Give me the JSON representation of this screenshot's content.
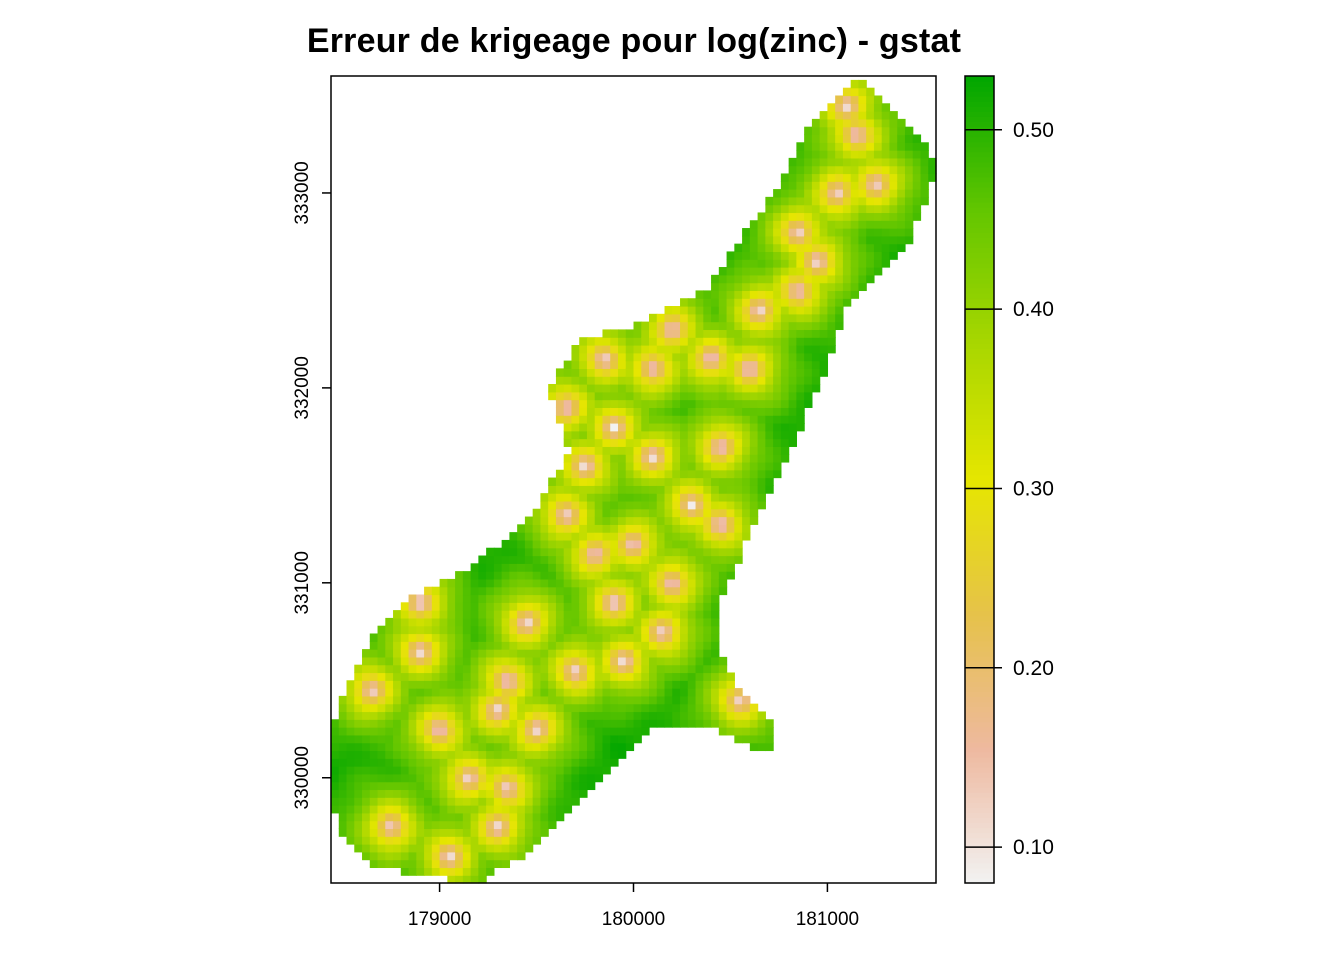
{
  "chart_data": {
    "type": "heatmap",
    "title": "Erreur de krigeage pour log(zinc) - gstat",
    "xlabel": "",
    "ylabel": "",
    "xlim": [
      178440,
      181560
    ],
    "ylim": [
      329460,
      333600
    ],
    "x_ticks": [
      179000,
      180000,
      181000
    ],
    "x_tick_labels": [
      "179000",
      "180000",
      "181000"
    ],
    "y_ticks": [
      330000,
      331000,
      332000,
      333000
    ],
    "y_tick_labels": [
      "330000",
      "331000",
      "332000",
      "333000"
    ],
    "grid": false,
    "cell_size": 40,
    "value_range": [
      0.08,
      0.53
    ],
    "colorbar": {
      "ticks": [
        0.1,
        0.2,
        0.3,
        0.4,
        0.5
      ],
      "tick_labels": [
        "0.10",
        "0.20",
        "0.30",
        "0.40",
        "0.50"
      ],
      "colors": [
        "#f2f2f2",
        "#eeb99f",
        "#e6c24a",
        "#e6e600",
        "#a9d700",
        "#63c600",
        "#00a600"
      ]
    },
    "study_area_outline": [
      [
        178440,
        329900
      ],
      [
        178460,
        330300
      ],
      [
        178560,
        330550
      ],
      [
        178640,
        330700
      ],
      [
        178820,
        330900
      ],
      [
        179100,
        331050
      ],
      [
        179440,
        331300
      ],
      [
        179670,
        331670
      ],
      [
        179560,
        332000
      ],
      [
        179720,
        332240
      ],
      [
        180020,
        332330
      ],
      [
        180380,
        332500
      ],
      [
        180580,
        332800
      ],
      [
        180760,
        333060
      ],
      [
        180920,
        333370
      ],
      [
        181140,
        333600
      ],
      [
        181220,
        333550
      ],
      [
        181520,
        333250
      ],
      [
        181560,
        333100
      ],
      [
        181400,
        332700
      ],
      [
        181100,
        332400
      ],
      [
        180970,
        332050
      ],
      [
        180800,
        331650
      ],
      [
        180600,
        331250
      ],
      [
        180420,
        330850
      ],
      [
        180430,
        330650
      ],
      [
        180590,
        330400
      ],
      [
        180720,
        330280
      ],
      [
        180700,
        330120
      ],
      [
        180430,
        330250
      ],
      [
        180100,
        330240
      ],
      [
        179880,
        330030
      ],
      [
        179700,
        329850
      ],
      [
        179400,
        329580
      ],
      [
        179200,
        329460
      ],
      [
        178900,
        329500
      ],
      [
        178640,
        329560
      ],
      [
        178500,
        329720
      ]
    ],
    "kriging_error": {
      "nugget": 0.085,
      "sill": 0.53,
      "range": 380,
      "low_error_points": [
        [
          178650,
          330450
        ],
        [
          178900,
          330650
        ],
        [
          179000,
          330250
        ],
        [
          179150,
          330000
        ],
        [
          179300,
          329750
        ],
        [
          179500,
          330250
        ],
        [
          179350,
          330500
        ],
        [
          179450,
          330800
        ],
        [
          179700,
          330550
        ],
        [
          179950,
          330600
        ],
        [
          179900,
          330900
        ],
        [
          180150,
          330750
        ],
        [
          180200,
          331000
        ],
        [
          180000,
          331200
        ],
        [
          179800,
          331150
        ],
        [
          179650,
          331350
        ],
        [
          179750,
          331600
        ],
        [
          179900,
          331800
        ],
        [
          179650,
          331900
        ],
        [
          179850,
          332150
        ],
        [
          180100,
          332100
        ],
        [
          180100,
          331650
        ],
        [
          180300,
          331400
        ],
        [
          180450,
          331700
        ],
        [
          180400,
          332150
        ],
        [
          180600,
          332100
        ],
        [
          180650,
          332400
        ],
        [
          180850,
          332500
        ],
        [
          180850,
          332800
        ],
        [
          181050,
          333000
        ],
        [
          181250,
          333050
        ],
        [
          181150,
          333300
        ],
        [
          181100,
          333450
        ],
        [
          180950,
          332650
        ],
        [
          180450,
          331300
        ],
        [
          180550,
          330400
        ],
        [
          178750,
          329750
        ],
        [
          179050,
          329600
        ],
        [
          179300,
          330350
        ],
        [
          178900,
          330900
        ],
        [
          180200,
          332300
        ],
        [
          179350,
          329950
        ]
      ]
    }
  }
}
